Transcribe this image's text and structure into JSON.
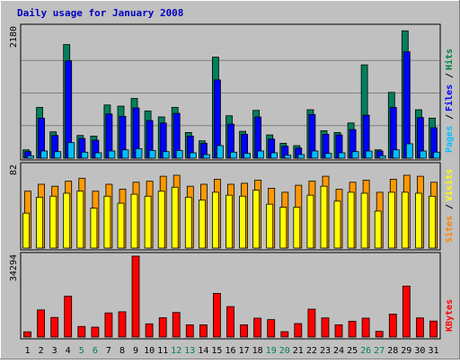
{
  "chart_data": {
    "type": "bar",
    "title": "Daily usage for January 2008",
    "categories": [
      "1",
      "2",
      "3",
      "4",
      "5",
      "6",
      "7",
      "8",
      "9",
      "10",
      "11",
      "12",
      "13",
      "14",
      "15",
      "16",
      "17",
      "18",
      "19",
      "20",
      "21",
      "22",
      "23",
      "24",
      "25",
      "26",
      "27",
      "28",
      "29",
      "30",
      "31"
    ],
    "weekend_days": [
      "5",
      "6",
      "12",
      "13",
      "19",
      "20",
      "26",
      "27"
    ],
    "panels": [
      {
        "id": "requests",
        "ymax_label": "2180",
        "ylim": [
          0,
          2180
        ],
        "legend": [
          {
            "text": "Pages",
            "color": "#00c0ff"
          },
          {
            "text": "Files",
            "color": "#0000ff"
          },
          {
            "text": "Hits",
            "color": "#008040"
          }
        ],
        "series": [
          {
            "name": "Hits",
            "color": "#00805c",
            "values": [
              140,
              850,
              440,
              1900,
              380,
              370,
              890,
              870,
              1000,
              790,
              690,
              850,
              430,
              290,
              1690,
              710,
              450,
              800,
              390,
              250,
              210,
              810,
              460,
              430,
              590,
              1560,
              140,
              1100,
              2130,
              810,
              670
            ]
          },
          {
            "name": "Files",
            "color": "#0000ff",
            "values": [
              110,
              670,
              380,
              1630,
              330,
              300,
              740,
              700,
              840,
              630,
              590,
              750,
              370,
              250,
              1310,
              570,
              400,
              690,
              320,
              200,
              170,
              730,
              400,
              390,
              480,
              720,
              120,
              850,
              1780,
              680,
              510
            ]
          },
          {
            "name": "Pages",
            "color": "#00c0ff",
            "values": [
              40,
              120,
              110,
              260,
              100,
              90,
              120,
              140,
              160,
              130,
              110,
              130,
              90,
              60,
              210,
              100,
              80,
              120,
              90,
              50,
              60,
              120,
              80,
              90,
              110,
              120,
              40,
              140,
              240,
              120,
              100
            ]
          }
        ]
      },
      {
        "id": "visits",
        "ymax_label": "82",
        "ylim": [
          0,
          82
        ],
        "legend": [
          {
            "text": "Sites",
            "color": "#ff8000"
          },
          {
            "text": "Visits",
            "color": "#ffff00"
          }
        ],
        "series": [
          {
            "name": "Sites",
            "color": "#ff9800",
            "values": [
              57,
              64,
              62,
              67,
              70,
              57,
              64,
              59,
              66,
              67,
              72,
              73,
              62,
              64,
              69,
              64,
              65,
              68,
              60,
              56,
              63,
              67,
              72,
              59,
              66,
              68,
              56,
              69,
              73,
              72,
              66
            ]
          },
          {
            "name": "Visits",
            "color": "#ffff00",
            "values": [
              35,
              51,
              52,
              55,
              57,
              40,
              52,
              45,
              54,
              52,
              57,
              61,
              51,
              48,
              56,
              53,
              52,
              58,
              44,
              41,
              41,
              53,
              62,
              47,
              56,
              55,
              37,
              56,
              56,
              55,
              52
            ]
          }
        ]
      },
      {
        "id": "kbytes",
        "ymax_label": "34294",
        "ylim": [
          0,
          34294
        ],
        "legend": [
          {
            "text": "KBytes",
            "color": "#ff0000"
          }
        ],
        "series": [
          {
            "name": "KBytes",
            "color": "#ff0000",
            "values": [
              2200,
              11500,
              8300,
              17300,
              4500,
              4200,
              10200,
              10700,
              34294,
              5600,
              8200,
              10400,
              5200,
              5200,
              18500,
              12900,
              5200,
              8000,
              7400,
              2300,
              5700,
              11800,
              8100,
              5200,
              6700,
              8000,
              2400,
              9700,
              21600,
              8100,
              6800
            ]
          }
        ]
      }
    ]
  }
}
